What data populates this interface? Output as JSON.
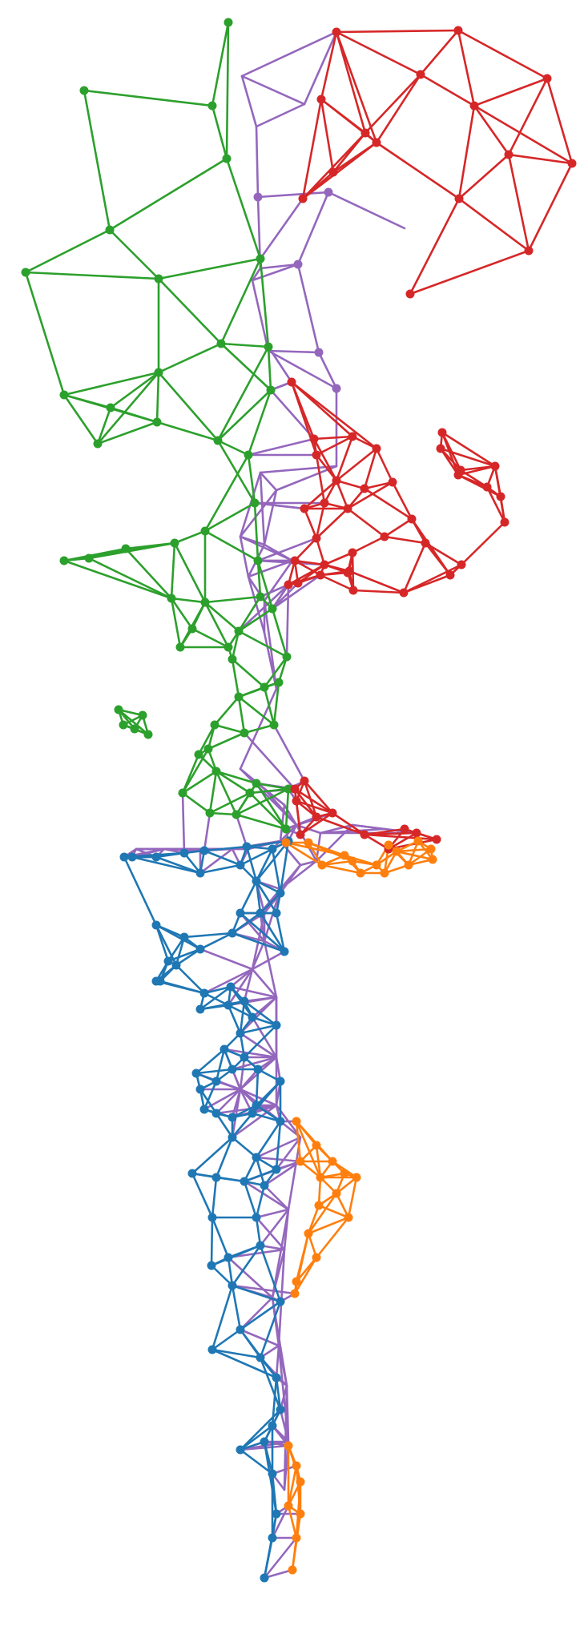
{
  "colors": {
    "background": "#ffffff",
    "green": "#2ca02c",
    "purple": "#9467bd",
    "red": "#d62728",
    "blue": "#1f77b4",
    "orange": "#ff7f0e"
  },
  "graph": {
    "node_groups": [
      {
        "name": "green",
        "color": "#2ca02c"
      },
      {
        "name": "purple",
        "color": "#9467bd"
      },
      {
        "name": "red",
        "color": "#d62728"
      },
      {
        "name": "blue",
        "color": "#1f77b4"
      },
      {
        "name": "orange",
        "color": "#ff7f0e"
      }
    ]
  }
}
